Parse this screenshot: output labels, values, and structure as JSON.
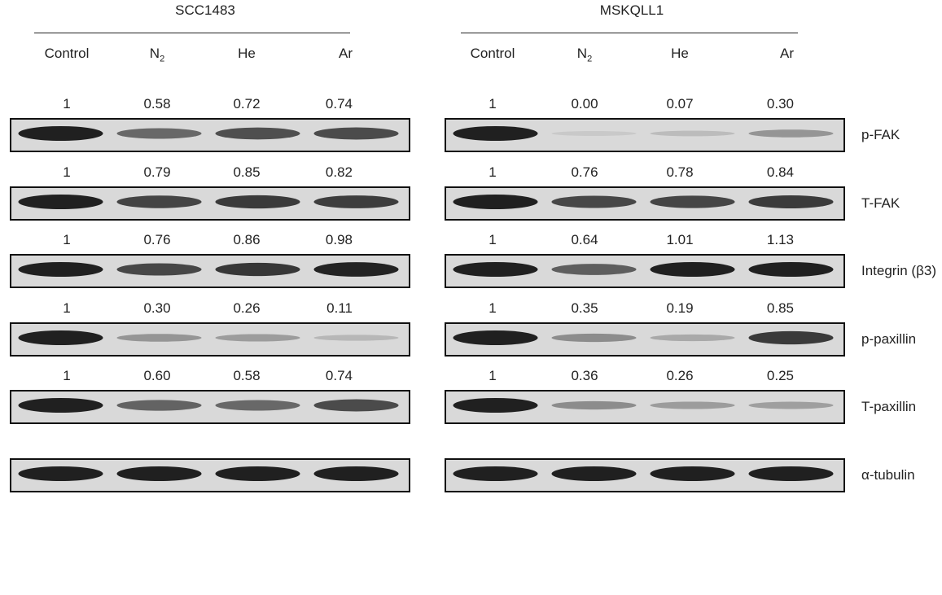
{
  "panels": [
    {
      "cell_line": "SCC1483",
      "lanes": [
        {
          "label": "Control",
          "sub": ""
        },
        {
          "label": "N",
          "sub": "2"
        },
        {
          "label": "He",
          "sub": ""
        },
        {
          "label": "Ar",
          "sub": ""
        }
      ],
      "rows": [
        {
          "protein": "p-FAK",
          "values": [
            "1",
            "0.58",
            "0.72",
            "0.74"
          ]
        },
        {
          "protein": "T-FAK",
          "values": [
            "1",
            "0.79",
            "0.85",
            "0.82"
          ]
        },
        {
          "protein": "Integrin (β3)",
          "values": [
            "1",
            "0.76",
            "0.86",
            "0.98"
          ]
        },
        {
          "protein": "p-paxillin",
          "values": [
            "1",
            "0.30",
            "0.26",
            "0.11"
          ]
        },
        {
          "protein": "T-paxillin",
          "values": [
            "1",
            "0.60",
            "0.58",
            "0.74"
          ]
        },
        {
          "protein": "α-tubulin",
          "values": []
        }
      ]
    },
    {
      "cell_line": "MSKQLL1",
      "lanes": [
        {
          "label": "Control",
          "sub": ""
        },
        {
          "label": "N",
          "sub": "2"
        },
        {
          "label": "He",
          "sub": ""
        },
        {
          "label": "Ar",
          "sub": ""
        }
      ],
      "rows": [
        {
          "protein": "p-FAK",
          "values": [
            "1",
            "0.00",
            "0.07",
            "0.30"
          ]
        },
        {
          "protein": "T-FAK",
          "values": [
            "1",
            "0.76",
            "0.78",
            "0.84"
          ]
        },
        {
          "protein": "Integrin (β3)",
          "values": [
            "1",
            "0.64",
            "1.01",
            "1.13"
          ]
        },
        {
          "protein": "p-paxillin",
          "values": [
            "1",
            "0.35",
            "0.19",
            "0.85"
          ]
        },
        {
          "protein": "T-paxillin",
          "values": [
            "1",
            "0.36",
            "0.26",
            "0.25"
          ]
        },
        {
          "protein": "α-tubulin",
          "values": []
        }
      ]
    }
  ],
  "row_labels": [
    "p-FAK",
    "T-FAK",
    "Integrin (β3)",
    "p-paxillin",
    "T-paxillin",
    "α-tubulin"
  ]
}
